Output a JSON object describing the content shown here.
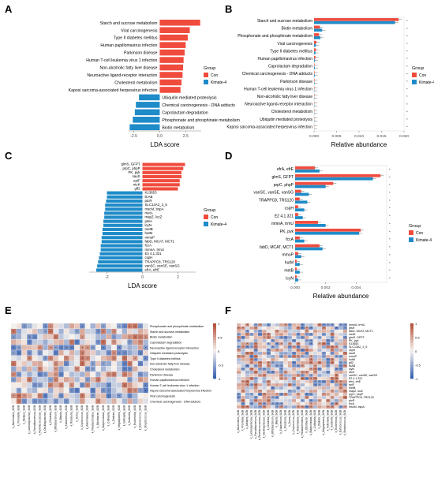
{
  "colors": {
    "con": "#f04c3e",
    "kimate": "#1f8bc8",
    "heat_pos": "#b5523b",
    "heat_neg": "#3a63b3",
    "heat_mid": "#f6f2ee"
  },
  "legend": {
    "title": "Group",
    "items": [
      "Con",
      "Kimate-4"
    ]
  },
  "panels": {
    "A": {
      "label": "A"
    },
    "B": {
      "label": "B"
    },
    "C": {
      "label": "C"
    },
    "D": {
      "label": "D"
    },
    "E": {
      "label": "E"
    },
    "F": {
      "label": "F"
    }
  },
  "chart_data": [
    {
      "panel": "A",
      "type": "bar",
      "orientation": "horizontal",
      "xlabel": "LDA score",
      "xlim": [
        -3,
        4
      ],
      "xticks": [
        "-2.5",
        "0.0",
        "2.5"
      ],
      "categories": [
        "Starch and sucrose metabolism",
        "Viral carcinogenesis",
        "Type II diabetes mellitus",
        "Human papillomavirus infection",
        "Parkinson disease",
        "Human T-cell leukemia virus 1 infection",
        "Non-alcoholic fatty liver disease",
        "Neuroactive ligand-receptor interaction",
        "Cholesterol metabolism",
        "Kaposi sarcoma-associated herpesvirus infection",
        "Ubiquitin mediated proteolysis",
        "Chemical carcinogenesis - DNA adducts",
        "Caprolactam degradation",
        "Phosphonate and phosphinate metabolism",
        "Biotin metabolism"
      ],
      "values": [
        3.9,
        2.9,
        2.7,
        2.5,
        2.4,
        2.3,
        2.25,
        2.2,
        2.1,
        2.0,
        -2.0,
        -2.3,
        -2.4,
        -2.6,
        -2.9
      ],
      "groups": [
        "Con",
        "Con",
        "Con",
        "Con",
        "Con",
        "Con",
        "Con",
        "Con",
        "Con",
        "Con",
        "Kimate-4",
        "Kimate-4",
        "Kimate-4",
        "Kimate-4",
        "Kimate-4"
      ]
    },
    {
      "panel": "B",
      "type": "bar",
      "orientation": "horizontal",
      "xlabel": "Relative abundance",
      "xlim": [
        0,
        0.02
      ],
      "xticks": [
        "0.000",
        "0.005",
        "0.010",
        "0.015",
        "0.020"
      ],
      "categories": [
        "Starch and sucrose metabolism",
        "Biotin metabolism",
        "Phosphonate and phosphinate metabolism",
        "Viral carcinogenesis",
        "Type II diabetes mellitus",
        "Human papillomavirus infection",
        "Caprolactam degradation",
        "Chemical carcinogenesis - DNA adducts",
        "Parkinson disease",
        "Human T-cell leukemia virus 1 infection",
        "Non-alcoholic fatty liver disease",
        "Neuroactive ligand-receptor interaction",
        "Cholesterol metabolism",
        "Ubiquitin mediated proteolysis",
        "Kaposi sarcoma-associated herpesvirus infection"
      ],
      "series": [
        {
          "name": "Con",
          "values": [
            0.0188,
            0.0013,
            0.0011,
            0.0005,
            0.0004,
            0.0003,
            0.0001,
            0.0001,
            0.0001,
            8e-05,
            7e-05,
            6e-05,
            5e-05,
            4e-05,
            3e-05
          ]
        },
        {
          "name": "Kimate-4",
          "values": [
            0.018,
            0.0018,
            0.0014,
            0.0004,
            0.0003,
            0.0002,
            0.00015,
            0.00014,
            8e-05,
            6e-05,
            5e-05,
            5e-05,
            4e-05,
            5e-05,
            2e-05
          ]
        }
      ]
    },
    {
      "panel": "C",
      "type": "bar",
      "orientation": "horizontal",
      "xlabel": "LDA score",
      "xlim": [
        -3,
        3
      ],
      "xticks": [
        "-2",
        "0",
        "2"
      ],
      "categories": [
        "glmS, GFPT",
        "prpC, phpP",
        "PK, pyk",
        "sauS",
        "epiF",
        "ntcK",
        "glf2",
        "K13653",
        "licAB",
        "ptcR",
        "SLC13A2_3_5",
        "mscM, bspA",
        "metA",
        "mapZ, locZ",
        "ptsH",
        "lcyN",
        "metB",
        "hutM",
        "mmuP",
        "fabD, MCAT, MCT1",
        "fccA",
        "mmnA, trmU",
        "E2 4.1.321",
        "cspH",
        "TRAPPC8, TRS120",
        "vanSC, vanSE, vanSG",
        "efrA, efrE"
      ],
      "values": [
        2.4,
        2.3,
        2.2,
        2.2,
        2.1,
        2.1,
        2.0,
        -2.0,
        -2.0,
        -2.05,
        -2.1,
        -2.1,
        -2.15,
        -2.15,
        -2.2,
        -2.2,
        -2.25,
        -2.25,
        -2.3,
        -2.3,
        -2.35,
        -2.35,
        -2.4,
        -2.45,
        -2.5,
        -2.55,
        -2.6
      ],
      "groups": [
        "Con",
        "Con",
        "Con",
        "Con",
        "Con",
        "Con",
        "Con",
        "Kimate-4",
        "Kimate-4",
        "Kimate-4",
        "Kimate-4",
        "Kimate-4",
        "Kimate-4",
        "Kimate-4",
        "Kimate-4",
        "Kimate-4",
        "Kimate-4",
        "Kimate-4",
        "Kimate-4",
        "Kimate-4",
        "Kimate-4",
        "Kimate-4",
        "Kimate-4",
        "Kimate-4",
        "Kimate-4",
        "Kimate-4",
        "Kimate-4"
      ]
    },
    {
      "panel": "D",
      "type": "bar",
      "orientation": "horizontal",
      "xlabel": "Relative abundance",
      "xlim": [
        0,
        0.006
      ],
      "xticks": [
        "0.000",
        "0.002",
        "0.004"
      ],
      "categories": [
        "efrA, efrE",
        "glmS, GFPT",
        "prpC, phpP",
        "vanSC, vanSE, vanSG",
        "TRAPPC8, TRS120",
        "cspH",
        "E2 4.1.321",
        "mmnA, trmU",
        "PK, pyk",
        "fccA",
        "fabD, MCAT, MCT1",
        "mmuP",
        "hutM",
        "metB",
        "lcyN"
      ],
      "series": [
        {
          "name": "Con",
          "values": [
            0.0013,
            0.0056,
            0.0025,
            0.0004,
            0.0003,
            0.0002,
            0.0002,
            0.0015,
            0.0043,
            0.0003,
            0.0016,
            0.0002,
            0.0001,
            0.0001,
            0.0001
          ]
        },
        {
          "name": "Kimate-4",
          "values": [
            0.0016,
            0.0051,
            0.002,
            0.0009,
            0.0008,
            0.0006,
            0.0005,
            0.002,
            0.0042,
            0.0006,
            0.0018,
            0.0004,
            0.0003,
            0.0003,
            0.0002
          ]
        }
      ]
    },
    {
      "panel": "E",
      "type": "heatmap",
      "legend_ticks": [
        "1",
        "0.5",
        "0",
        "-0.5",
        "-1"
      ],
      "rows": [
        "Phosphonate and phosphinate metabolism",
        "Starch and sucrose metabolism",
        "Biotin metabolism",
        "Caprolactam degradation",
        "Neuroactive ligand-receptor interaction",
        "Ubiquitin mediated proteolysis",
        "Type II diabetes mellitus",
        "Non-alcoholic fatty liver disease",
        "Cholesterol metabolism",
        "Parkinson disease",
        "Human papillomavirus infection",
        "Human T-cell leukemia virus 1 infection",
        "Kaposi sarcoma-associated herpesvirus infection",
        "Viral carcinogenesis",
        "Chemical carcinogenesis - DNA adducts"
      ],
      "columns": [
        "k_Bacteroides_SGB",
        "k_Prevotella_SGB",
        "k_Alistipes_SGB",
        "k_Lachnospiraceae_SGB",
        "k_Faecalibacterium_SGB",
        "k_Ruminococcaceae_SGB",
        "k_Oscillospiraceae_SGB",
        "k_Clostridia_SGB",
        "k_Bifidobacterium_SGB",
        "k_Blautia_SGB",
        "k_Eubacterium_SGB",
        "k_Roseburia_SGB",
        "k_Dorea_SGB",
        "k_Coprococcus_SGB",
        "k_Akkermansia_SGB",
        "k_Parabacteroides_SGB",
        "k_Odoribacter_SGB",
        "k_Butyricimonas_SGB",
        "k_Collinsella_SGB",
        "k_Dialister_SGB",
        "k_Megasphaera_SGB",
        "k_Veillonella_SGB",
        "k_Sutterella_SGB",
        "k_Escherichia_SGB",
        "k_Enterococcus_SGB",
        "k_Streptococcus_SGB"
      ]
    },
    {
      "panel": "F",
      "type": "heatmap",
      "legend_ticks": [
        "1",
        "0.5",
        "0",
        "-0.5",
        "-1"
      ],
      "rows": [
        "mmnA, trmU",
        "ptsH",
        "fabD, MCAT, MCT1",
        "metA",
        "glmS, GFPT",
        "PK, pyk",
        "K13653",
        "SLC13A2_3_5",
        "cspH",
        "sauS",
        "mmuP",
        "hutM",
        "glf2",
        "licAB",
        "lcyN",
        "ntcK",
        "vanSC, vanSE, vanSG",
        "E2 4.1.321",
        "efrA, efrE",
        "epiF",
        "metB",
        "mapZ, locZ",
        "prpC, phpP",
        "TRAPPC8, TRS120",
        "ptcR",
        "fccA",
        "mscM, bspA"
      ],
      "columns": [
        "k_Bacteroides_SGB",
        "k_Prevotella_SGB",
        "k_Alistipes_SGB",
        "k_Lachnospiraceae_SGB",
        "k_Faecalibacterium_SGB",
        "k_Ruminococcaceae_SGB",
        "k_Oscillospiraceae_SGB",
        "k_Clostridia_SGB",
        "k_Bifidobacterium_SGB",
        "k_Blautia_SGB",
        "k_Eubacterium_SGB",
        "k_Roseburia_SGB",
        "k_Dorea_SGB",
        "k_Coprococcus_SGB",
        "k_Akkermansia_SGB",
        "k_Parabacteroides_SGB",
        "k_Odoribacter_SGB",
        "k_Butyricimonas_SGB",
        "k_Collinsella_SGB",
        "k_Dialister_SGB",
        "k_Megasphaera_SGB",
        "k_Veillonella_SGB",
        "k_Sutterella_SGB",
        "k_Escherichia_SGB",
        "k_Enterococcus_SGB",
        "k_Streptococcus_SGB"
      ]
    }
  ]
}
